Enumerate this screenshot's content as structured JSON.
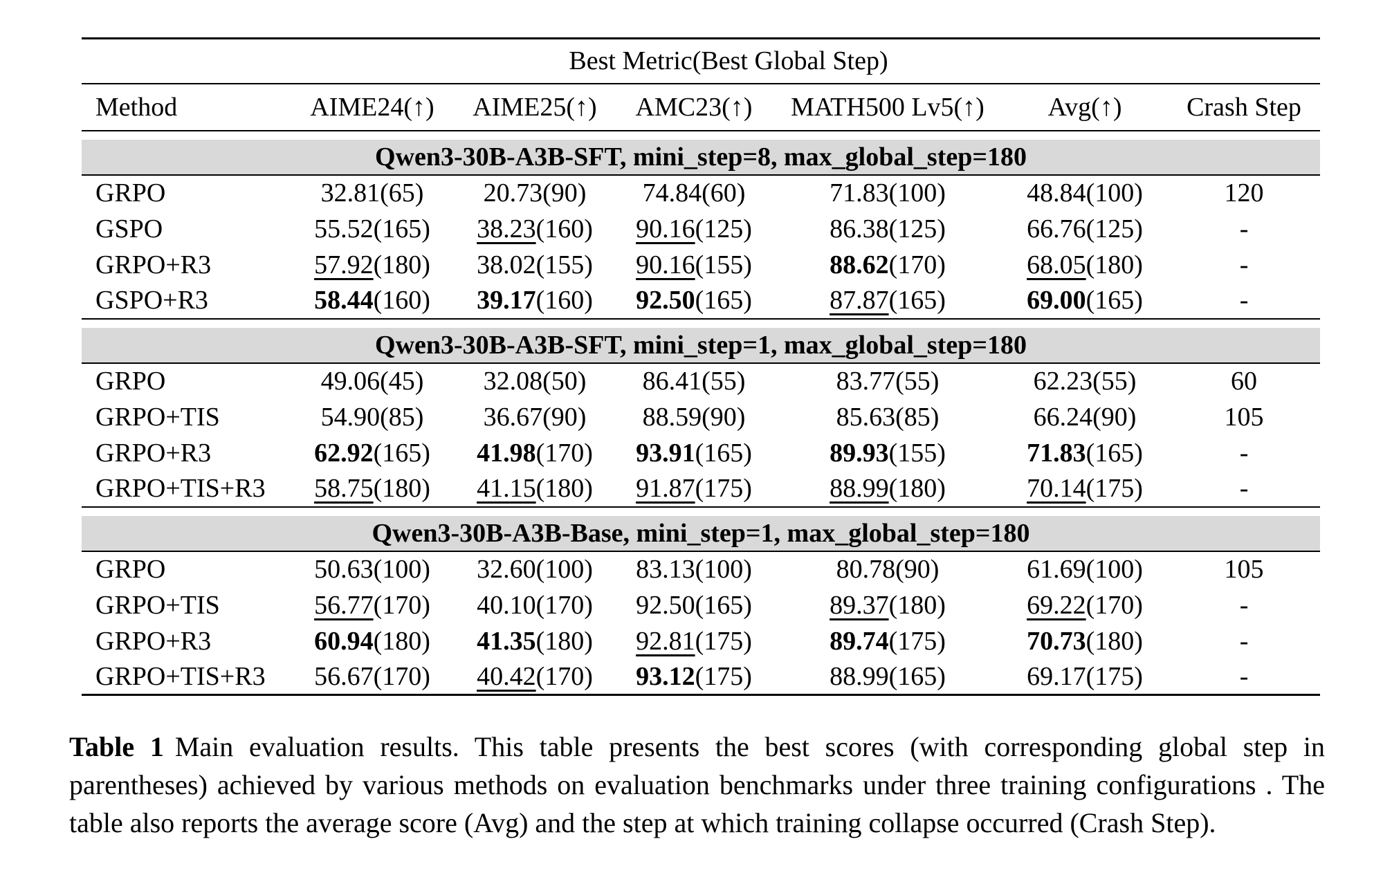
{
  "colors": {
    "section_bg": "#d9d9d9",
    "text": "#000000",
    "background": "#ffffff"
  },
  "table": {
    "spanner": "Best Metric(Best Global Step)",
    "columns": [
      "Method",
      "AIME24(↑)",
      "AIME25(↑)",
      "AMC23(↑)",
      "MATH500 Lv5(↑)",
      "Avg(↑)",
      "Crash Step"
    ],
    "sections": [
      {
        "header": "Qwen3-30B-A3B-SFT, mini_step=8, max_global_step=180",
        "rows": [
          {
            "method": "GRPO",
            "cells": [
              {
                "score": "32.81",
                "step": "65",
                "style": "plain"
              },
              {
                "score": "20.73",
                "step": "90",
                "style": "plain"
              },
              {
                "score": "74.84",
                "step": "60",
                "style": "plain"
              },
              {
                "score": "71.83",
                "step": "100",
                "style": "plain"
              },
              {
                "score": "48.84",
                "step": "100",
                "style": "plain"
              }
            ],
            "crash": "120"
          },
          {
            "method": "GSPO",
            "cells": [
              {
                "score": "55.52",
                "step": "165",
                "style": "plain"
              },
              {
                "score": "38.23",
                "step": "160",
                "style": "underline"
              },
              {
                "score": "90.16",
                "step": "125",
                "style": "underline"
              },
              {
                "score": "86.38",
                "step": "125",
                "style": "plain"
              },
              {
                "score": "66.76",
                "step": "125",
                "style": "plain"
              }
            ],
            "crash": "-"
          },
          {
            "method": "GRPO+R3",
            "cells": [
              {
                "score": "57.92",
                "step": "180",
                "style": "underline"
              },
              {
                "score": "38.02",
                "step": "155",
                "style": "plain"
              },
              {
                "score": "90.16",
                "step": "155",
                "style": "underline"
              },
              {
                "score": "88.62",
                "step": "170",
                "style": "bold"
              },
              {
                "score": "68.05",
                "step": "180",
                "style": "underline"
              }
            ],
            "crash": "-"
          },
          {
            "method": "GSPO+R3",
            "cells": [
              {
                "score": "58.44",
                "step": "160",
                "style": "bold"
              },
              {
                "score": "39.17",
                "step": "160",
                "style": "bold"
              },
              {
                "score": "92.50",
                "step": "165",
                "style": "bold"
              },
              {
                "score": "87.87",
                "step": "165",
                "style": "underline"
              },
              {
                "score": "69.00",
                "step": "165",
                "style": "bold"
              }
            ],
            "crash": "-"
          }
        ]
      },
      {
        "header": "Qwen3-30B-A3B-SFT, mini_step=1, max_global_step=180",
        "rows": [
          {
            "method": "GRPO",
            "cells": [
              {
                "score": "49.06",
                "step": "45",
                "style": "plain"
              },
              {
                "score": "32.08",
                "step": "50",
                "style": "plain"
              },
              {
                "score": "86.41",
                "step": "55",
                "style": "plain"
              },
              {
                "score": "83.77",
                "step": "55",
                "style": "plain"
              },
              {
                "score": "62.23",
                "step": "55",
                "style": "plain"
              }
            ],
            "crash": "60"
          },
          {
            "method": "GRPO+TIS",
            "cells": [
              {
                "score": "54.90",
                "step": "85",
                "style": "plain"
              },
              {
                "score": "36.67",
                "step": "90",
                "style": "plain"
              },
              {
                "score": "88.59",
                "step": "90",
                "style": "plain"
              },
              {
                "score": "85.63",
                "step": "85",
                "style": "plain"
              },
              {
                "score": "66.24",
                "step": "90",
                "style": "plain"
              }
            ],
            "crash": "105"
          },
          {
            "method": "GRPO+R3",
            "cells": [
              {
                "score": "62.92",
                "step": "165",
                "style": "bold"
              },
              {
                "score": "41.98",
                "step": "170",
                "style": "bold"
              },
              {
                "score": "93.91",
                "step": "165",
                "style": "bold"
              },
              {
                "score": "89.93",
                "step": "155",
                "style": "bold"
              },
              {
                "score": "71.83",
                "step": "165",
                "style": "bold"
              }
            ],
            "crash": "-"
          },
          {
            "method": "GRPO+TIS+R3",
            "cells": [
              {
                "score": "58.75",
                "step": "180",
                "style": "underline"
              },
              {
                "score": "41.15",
                "step": "180",
                "style": "underline"
              },
              {
                "score": "91.87",
                "step": "175",
                "style": "underline"
              },
              {
                "score": "88.99",
                "step": "180",
                "style": "underline"
              },
              {
                "score": "70.14",
                "step": "175",
                "style": "underline"
              }
            ],
            "crash": "-"
          }
        ]
      },
      {
        "header": "Qwen3-30B-A3B-Base, mini_step=1, max_global_step=180",
        "rows": [
          {
            "method": "GRPO",
            "cells": [
              {
                "score": "50.63",
                "step": "100",
                "style": "plain"
              },
              {
                "score": "32.60",
                "step": "100",
                "style": "plain"
              },
              {
                "score": "83.13",
                "step": "100",
                "style": "plain"
              },
              {
                "score": "80.78",
                "step": "90",
                "style": "plain"
              },
              {
                "score": "61.69",
                "step": "100",
                "style": "plain"
              }
            ],
            "crash": "105"
          },
          {
            "method": "GRPO+TIS",
            "cells": [
              {
                "score": "56.77",
                "step": "170",
                "style": "underline"
              },
              {
                "score": "40.10",
                "step": "170",
                "style": "plain"
              },
              {
                "score": "92.50",
                "step": "165",
                "style": "plain"
              },
              {
                "score": "89.37",
                "step": "180",
                "style": "underline"
              },
              {
                "score": "69.22",
                "step": "170",
                "style": "underline"
              }
            ],
            "crash": "-"
          },
          {
            "method": "GRPO+R3",
            "cells": [
              {
                "score": "60.94",
                "step": "180",
                "style": "bold"
              },
              {
                "score": "41.35",
                "step": "180",
                "style": "bold"
              },
              {
                "score": "92.81",
                "step": "175",
                "style": "underline"
              },
              {
                "score": "89.74",
                "step": "175",
                "style": "bold"
              },
              {
                "score": "70.73",
                "step": "180",
                "style": "bold"
              }
            ],
            "crash": "-"
          },
          {
            "method": "GRPO+TIS+R3",
            "cells": [
              {
                "score": "56.67",
                "step": "170",
                "style": "plain"
              },
              {
                "score": "40.42",
                "step": "170",
                "style": "underline"
              },
              {
                "score": "93.12",
                "step": "175",
                "style": "bold"
              },
              {
                "score": "88.99",
                "step": "165",
                "style": "plain"
              },
              {
                "score": "69.17",
                "step": "175",
                "style": "plain"
              }
            ],
            "crash": "-"
          }
        ]
      }
    ]
  },
  "caption": {
    "label": "Table 1",
    "text": "Main evaluation results. This table presents the best scores (with corresponding global step in parentheses) achieved by various methods on evaluation benchmarks under three training configurations . The table also reports the average score (Avg) and the step at which training collapse occurred (Crash Step)."
  }
}
